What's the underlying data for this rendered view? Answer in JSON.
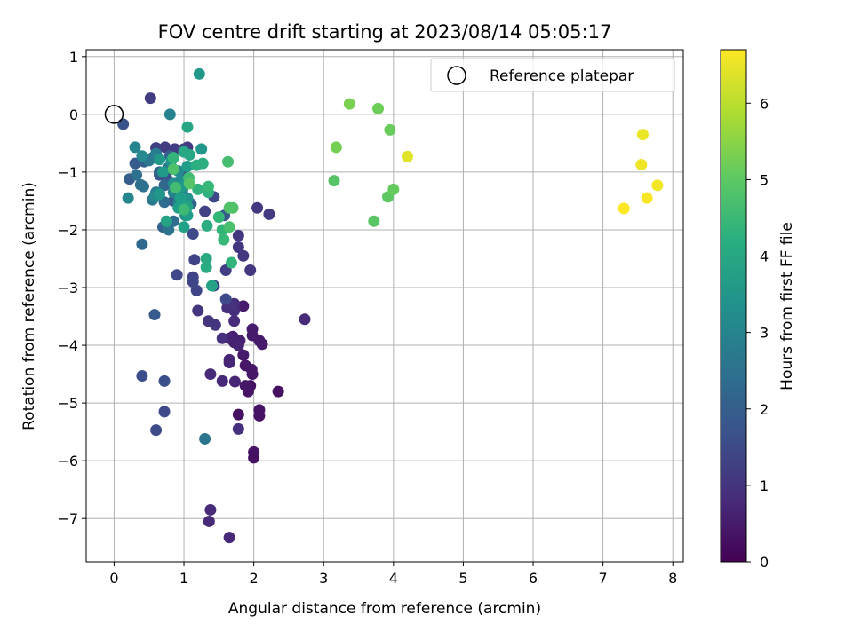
{
  "chart_data": {
    "type": "scatter",
    "title": "FOV centre drift starting at 2023/08/14 05:05:17",
    "xlabel": "Angular distance from reference (arcmin)",
    "ylabel": "Rotation from reference (arcmin)",
    "xlim": [
      -0.4,
      8.15
    ],
    "ylim": [
      -7.75,
      1.12
    ],
    "xticks": [
      "0",
      "1",
      "2",
      "3",
      "4",
      "5",
      "6",
      "7",
      "8"
    ],
    "yticks": [
      "1",
      "0",
      "−1",
      "−2",
      "−3",
      "−4",
      "−5",
      "−6",
      "−7"
    ],
    "grid": true,
    "legend": {
      "placement": "top-right",
      "entries": [
        "Reference platepar"
      ]
    },
    "reference_point": {
      "x": 0,
      "y": 0
    },
    "colorbar": {
      "label": "Hours from first FF file",
      "min": 0,
      "max": 6.7,
      "ticks": [
        "0",
        "1",
        "2",
        "3",
        "4",
        "5",
        "6"
      ],
      "colormap": "viridis"
    },
    "points": [
      {
        "x": 1.78,
        "y": -5.2,
        "h": 0.3
      },
      {
        "x": 1.95,
        "y": -4.7,
        "h": 0.3
      },
      {
        "x": 2.0,
        "y": -5.85,
        "h": 0.35
      },
      {
        "x": 2.0,
        "y": -5.95,
        "h": 0.3
      },
      {
        "x": 2.08,
        "y": -5.12,
        "h": 0.35
      },
      {
        "x": 2.08,
        "y": -5.22,
        "h": 0.35
      },
      {
        "x": 2.35,
        "y": -4.8,
        "h": 0.3
      },
      {
        "x": 1.92,
        "y": -4.8,
        "h": 0.35
      },
      {
        "x": 1.97,
        "y": -4.42,
        "h": 0.4
      },
      {
        "x": 1.98,
        "y": -4.5,
        "h": 0.4
      },
      {
        "x": 1.88,
        "y": -4.35,
        "h": 0.4
      },
      {
        "x": 1.88,
        "y": -4.7,
        "h": 0.4
      },
      {
        "x": 1.85,
        "y": -4.17,
        "h": 0.45
      },
      {
        "x": 1.85,
        "y": -3.32,
        "h": 0.45
      },
      {
        "x": 1.98,
        "y": -3.72,
        "h": 0.5
      },
      {
        "x": 2.08,
        "y": -3.92,
        "h": 0.5
      },
      {
        "x": 2.12,
        "y": -3.98,
        "h": 0.5
      },
      {
        "x": 1.98,
        "y": -3.83,
        "h": 0.5
      },
      {
        "x": 1.8,
        "y": -3.92,
        "h": 0.6
      },
      {
        "x": 1.72,
        "y": -3.95,
        "h": 0.6
      },
      {
        "x": 1.7,
        "y": -3.85,
        "h": 0.6
      },
      {
        "x": 1.65,
        "y": -3.88,
        "h": 0.65
      },
      {
        "x": 1.78,
        "y": -4.0,
        "h": 0.65
      },
      {
        "x": 1.65,
        "y": -4.25,
        "h": 0.7
      },
      {
        "x": 1.65,
        "y": -4.3,
        "h": 0.7
      },
      {
        "x": 1.73,
        "y": -4.63,
        "h": 0.7
      },
      {
        "x": 1.55,
        "y": -4.62,
        "h": 0.75
      },
      {
        "x": 1.38,
        "y": -4.5,
        "h": 0.8
      },
      {
        "x": 1.65,
        "y": -7.33,
        "h": 0.75
      },
      {
        "x": 1.38,
        "y": -6.85,
        "h": 0.8
      },
      {
        "x": 1.36,
        "y": -7.05,
        "h": 0.8
      },
      {
        "x": 2.73,
        "y": -3.55,
        "h": 0.8
      },
      {
        "x": 1.72,
        "y": -3.58,
        "h": 0.85
      },
      {
        "x": 1.72,
        "y": -3.28,
        "h": 0.85
      },
      {
        "x": 1.72,
        "y": -3.4,
        "h": 0.9
      },
      {
        "x": 1.78,
        "y": -5.45,
        "h": 0.9
      },
      {
        "x": 1.62,
        "y": -3.35,
        "h": 0.9
      },
      {
        "x": 1.68,
        "y": -3.3,
        "h": 0.95
      },
      {
        "x": 1.55,
        "y": -3.88,
        "h": 0.95
      },
      {
        "x": 1.45,
        "y": -3.65,
        "h": 1.0
      },
      {
        "x": 1.35,
        "y": -3.58,
        "h": 1.0
      },
      {
        "x": 1.2,
        "y": -3.4,
        "h": 1.0
      },
      {
        "x": 1.95,
        "y": -2.7,
        "h": 1.05
      },
      {
        "x": 1.85,
        "y": -2.45,
        "h": 1.05
      },
      {
        "x": 1.78,
        "y": -2.3,
        "h": 1.1
      },
      {
        "x": 1.78,
        "y": -2.1,
        "h": 1.1
      },
      {
        "x": 2.05,
        "y": -1.62,
        "h": 1.1
      },
      {
        "x": 2.22,
        "y": -1.73,
        "h": 1.15
      },
      {
        "x": 1.05,
        "y": -0.57,
        "h": 1.15
      },
      {
        "x": 0.52,
        "y": 0.28,
        "h": 1.2
      },
      {
        "x": 0.73,
        "y": -0.57,
        "h": 1.2
      },
      {
        "x": 0.87,
        "y": -0.6,
        "h": 1.2
      },
      {
        "x": 1.0,
        "y": -0.6,
        "h": 1.2
      },
      {
        "x": 0.6,
        "y": -0.58,
        "h": 1.25
      },
      {
        "x": 1.6,
        "y": -2.7,
        "h": 1.25
      },
      {
        "x": 1.43,
        "y": -2.97,
        "h": 1.3
      },
      {
        "x": 1.3,
        "y": -1.68,
        "h": 1.3
      },
      {
        "x": 1.15,
        "y": -2.52,
        "h": 1.35
      },
      {
        "x": 1.13,
        "y": -2.82,
        "h": 1.35
      },
      {
        "x": 1.13,
        "y": -2.9,
        "h": 1.4
      },
      {
        "x": 1.18,
        "y": -3.05,
        "h": 1.4
      },
      {
        "x": 0.9,
        "y": -2.78,
        "h": 1.45
      },
      {
        "x": 1.43,
        "y": -1.43,
        "h": 1.45
      },
      {
        "x": 1.13,
        "y": -2.07,
        "h": 1.5
      },
      {
        "x": 1.6,
        "y": -3.2,
        "h": 1.5
      },
      {
        "x": 0.72,
        "y": -5.15,
        "h": 1.5
      },
      {
        "x": 0.6,
        "y": -5.47,
        "h": 1.55
      },
      {
        "x": 0.4,
        "y": -4.53,
        "h": 1.6
      },
      {
        "x": 0.72,
        "y": -4.62,
        "h": 1.65
      },
      {
        "x": 1.0,
        "y": -1.05,
        "h": 1.6
      },
      {
        "x": 0.75,
        "y": -1.1,
        "h": 1.7
      },
      {
        "x": 0.65,
        "y": -1.05,
        "h": 1.75
      },
      {
        "x": 0.13,
        "y": -0.17,
        "h": 1.7
      },
      {
        "x": 0.95,
        "y": -1.3,
        "h": 1.8
      },
      {
        "x": 0.85,
        "y": -1.5,
        "h": 1.8
      },
      {
        "x": 1.58,
        "y": -1.75,
        "h": 1.85
      },
      {
        "x": 0.58,
        "y": -3.47,
        "h": 1.9
      },
      {
        "x": 0.3,
        "y": -0.85,
        "h": 1.9
      },
      {
        "x": 0.22,
        "y": -1.12,
        "h": 1.95
      },
      {
        "x": 0.43,
        "y": -0.82,
        "h": 2.0
      },
      {
        "x": 0.8,
        "y": -0.72,
        "h": 2.0
      },
      {
        "x": 1.0,
        "y": -1.42,
        "h": 2.0
      },
      {
        "x": 1.1,
        "y": -1.55,
        "h": 2.05
      },
      {
        "x": 1.0,
        "y": -1.1,
        "h": 2.05
      },
      {
        "x": 0.65,
        "y": -1.0,
        "h": 2.1
      },
      {
        "x": 0.7,
        "y": -1.95,
        "h": 2.1
      },
      {
        "x": 0.55,
        "y": -0.75,
        "h": 2.15
      },
      {
        "x": 0.72,
        "y": -1.23,
        "h": 2.2
      },
      {
        "x": 0.4,
        "y": -2.25,
        "h": 2.25
      },
      {
        "x": 0.6,
        "y": -0.75,
        "h": 2.3
      },
      {
        "x": 0.72,
        "y": -1.52,
        "h": 2.35
      },
      {
        "x": 0.85,
        "y": -1.85,
        "h": 2.4
      },
      {
        "x": 0.38,
        "y": -1.22,
        "h": 2.45
      },
      {
        "x": 0.42,
        "y": -1.25,
        "h": 2.5
      },
      {
        "x": 0.32,
        "y": -1.05,
        "h": 2.5
      },
      {
        "x": 0.78,
        "y": -2.0,
        "h": 2.55
      },
      {
        "x": 1.3,
        "y": -5.62,
        "h": 2.6
      },
      {
        "x": 0.5,
        "y": -0.8,
        "h": 2.65
      },
      {
        "x": 0.55,
        "y": -1.48,
        "h": 2.7
      },
      {
        "x": 0.98,
        "y": -1.3,
        "h": 2.75
      },
      {
        "x": 0.6,
        "y": -1.35,
        "h": 2.8
      },
      {
        "x": 0.78,
        "y": -0.92,
        "h": 2.8
      },
      {
        "x": 0.6,
        "y": -0.68,
        "h": 2.85
      },
      {
        "x": 0.92,
        "y": -1.52,
        "h": 2.9
      },
      {
        "x": 0.98,
        "y": -1.58,
        "h": 2.95
      },
      {
        "x": 0.85,
        "y": -1.35,
        "h": 3.0
      },
      {
        "x": 0.8,
        "y": 0.0,
        "h": 3.0
      },
      {
        "x": 0.3,
        "y": -0.57,
        "h": 3.05
      },
      {
        "x": 0.2,
        "y": -1.45,
        "h": 3.1
      },
      {
        "x": 0.58,
        "y": -1.42,
        "h": 3.15
      },
      {
        "x": 0.4,
        "y": -0.72,
        "h": 3.2
      },
      {
        "x": 0.92,
        "y": -0.98,
        "h": 3.2
      },
      {
        "x": 0.95,
        "y": -1.15,
        "h": 3.25
      },
      {
        "x": 0.85,
        "y": -1.2,
        "h": 3.3
      },
      {
        "x": 1.02,
        "y": -1.75,
        "h": 3.35
      },
      {
        "x": 1.02,
        "y": -1.65,
        "h": 3.4
      },
      {
        "x": 1.05,
        "y": -1.45,
        "h": 3.45
      },
      {
        "x": 0.65,
        "y": -1.38,
        "h": 3.5
      },
      {
        "x": 1.25,
        "y": -0.6,
        "h": 3.5
      },
      {
        "x": 1.22,
        "y": 0.7,
        "h": 3.55
      },
      {
        "x": 0.65,
        "y": -0.78,
        "h": 3.55
      },
      {
        "x": 0.82,
        "y": -0.8,
        "h": 3.6
      },
      {
        "x": 0.7,
        "y": -1.0,
        "h": 3.6
      },
      {
        "x": 0.98,
        "y": -1.25,
        "h": 3.65
      },
      {
        "x": 1.05,
        "y": -0.9,
        "h": 3.7
      },
      {
        "x": 1.05,
        "y": -1.75,
        "h": 3.7
      },
      {
        "x": 0.95,
        "y": -1.45,
        "h": 3.75
      },
      {
        "x": 0.92,
        "y": -1.62,
        "h": 3.75
      },
      {
        "x": 1.0,
        "y": -1.95,
        "h": 3.8
      },
      {
        "x": 1.05,
        "y": -1.6,
        "h": 3.85
      },
      {
        "x": 0.75,
        "y": -1.85,
        "h": 3.9
      },
      {
        "x": 1.4,
        "y": -2.97,
        "h": 3.9
      },
      {
        "x": 1.05,
        "y": -0.22,
        "h": 3.95
      },
      {
        "x": 1.0,
        "y": -0.65,
        "h": 4.0
      },
      {
        "x": 1.08,
        "y": -0.7,
        "h": 4.0
      },
      {
        "x": 1.32,
        "y": -2.5,
        "h": 4.05
      },
      {
        "x": 1.32,
        "y": -2.65,
        "h": 4.1
      },
      {
        "x": 1.33,
        "y": -1.93,
        "h": 4.15
      },
      {
        "x": 1.18,
        "y": -0.88,
        "h": 4.2
      },
      {
        "x": 1.27,
        "y": -0.85,
        "h": 4.2
      },
      {
        "x": 1.35,
        "y": -1.35,
        "h": 4.25
      },
      {
        "x": 1.2,
        "y": -1.3,
        "h": 4.3
      },
      {
        "x": 1.68,
        "y": -2.57,
        "h": 4.35
      },
      {
        "x": 1.55,
        "y": -2.0,
        "h": 4.4
      },
      {
        "x": 0.85,
        "y": -0.75,
        "h": 4.4
      },
      {
        "x": 1.5,
        "y": -1.78,
        "h": 4.45
      },
      {
        "x": 1.35,
        "y": -1.25,
        "h": 4.5
      },
      {
        "x": 1.57,
        "y": -2.17,
        "h": 4.5
      },
      {
        "x": 1.0,
        "y": -1.65,
        "h": 4.55
      },
      {
        "x": 1.07,
        "y": -1.1,
        "h": 4.6
      },
      {
        "x": 0.88,
        "y": -1.27,
        "h": 4.65
      },
      {
        "x": 1.63,
        "y": -0.82,
        "h": 4.7
      },
      {
        "x": 1.65,
        "y": -1.95,
        "h": 4.75
      },
      {
        "x": 0.85,
        "y": -0.95,
        "h": 4.8
      },
      {
        "x": 1.7,
        "y": -1.62,
        "h": 4.85
      },
      {
        "x": 1.65,
        "y": -1.62,
        "h": 4.85
      },
      {
        "x": 1.08,
        "y": -1.2,
        "h": 4.9
      },
      {
        "x": 3.15,
        "y": -1.15,
        "h": 4.9
      },
      {
        "x": 3.72,
        "y": -1.85,
        "h": 4.95
      },
      {
        "x": 3.92,
        "y": -1.43,
        "h": 5.0
      },
      {
        "x": 4.0,
        "y": -1.3,
        "h": 5.1
      },
      {
        "x": 3.95,
        "y": -0.27,
        "h": 5.15
      },
      {
        "x": 3.78,
        "y": 0.1,
        "h": 5.2
      },
      {
        "x": 3.18,
        "y": -0.57,
        "h": 5.3
      },
      {
        "x": 3.37,
        "y": 0.18,
        "h": 5.35
      },
      {
        "x": 4.2,
        "y": -0.73,
        "h": 6.4
      },
      {
        "x": 7.57,
        "y": -0.35,
        "h": 6.5
      },
      {
        "x": 7.55,
        "y": -0.87,
        "h": 6.55
      },
      {
        "x": 7.78,
        "y": -1.23,
        "h": 6.6
      },
      {
        "x": 7.63,
        "y": -1.45,
        "h": 6.65
      },
      {
        "x": 7.3,
        "y": -1.63,
        "h": 6.7
      }
    ]
  }
}
